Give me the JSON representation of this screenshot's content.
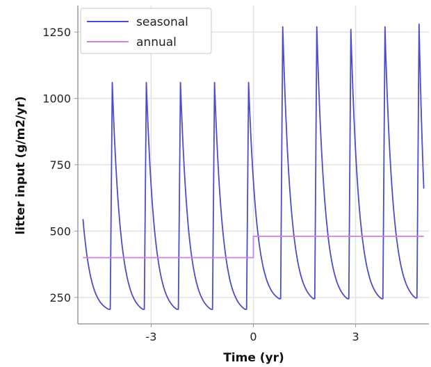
{
  "chart_data": {
    "type": "line",
    "xlabel": "Time (yr)",
    "ylabel": "litter input (g/m2/yr)",
    "xlim": [
      -5.15,
      5.15
    ],
    "ylim": [
      150,
      1350
    ],
    "xticks": [
      -3,
      0,
      3
    ],
    "xtick_labels": [
      "-3",
      "0",
      "3"
    ],
    "yticks": [
      250,
      500,
      750,
      1000,
      1250
    ],
    "ytick_labels": [
      "250",
      "500",
      "750",
      "1000",
      "1250"
    ],
    "grid": true,
    "legend_position": "top-left",
    "series": [
      {
        "name": "seasonal",
        "color": "#4b4bcc",
        "style": "pulses",
        "cycle_starts": [
          -5.0,
          -4.2,
          -3.2,
          -2.2,
          -1.2,
          -0.2,
          0.8,
          1.8,
          2.8,
          3.8,
          4.8
        ],
        "peaks": [
          545,
          1060,
          1060,
          1060,
          1060,
          1060,
          1270,
          1270,
          1260,
          1270,
          1280
        ],
        "troughs": [
          205,
          205,
          205,
          205,
          205,
          245,
          245,
          245,
          245,
          248
        ],
        "end": {
          "x": 5.0,
          "y": 660
        }
      },
      {
        "name": "annual",
        "color": "#d67ae6",
        "x": [
          -5.0,
          0.0,
          0.0,
          5.0
        ],
        "y": [
          400,
          400,
          480,
          480
        ]
      }
    ]
  }
}
